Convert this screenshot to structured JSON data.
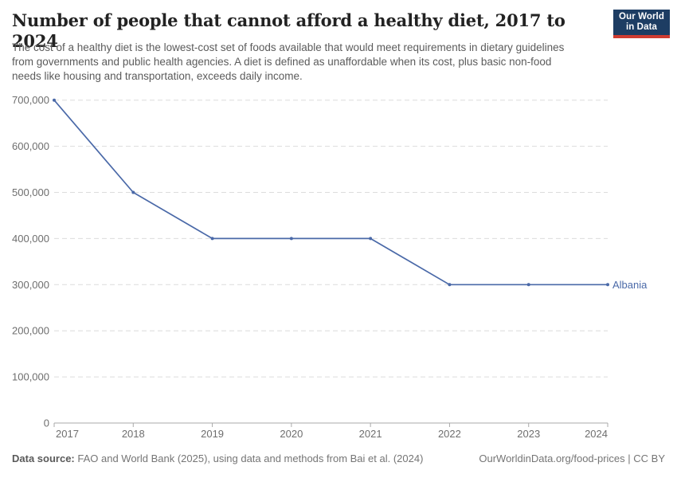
{
  "header": {
    "title": "Number of people that cannot afford a healthy diet, 2017 to 2024",
    "subtitle": "The cost of a healthy diet is the lowest-cost set of foods available that would meet requirements in dietary guidelines from governments and public health agencies. A diet is defined as unaffordable when its cost, plus basic non-food needs like housing and transportation, exceeds daily income.",
    "logo": {
      "line1": "Our World",
      "line2": "in Data"
    }
  },
  "chart_data": {
    "type": "line",
    "title": "Number of people that cannot afford a healthy diet, 2017 to 2024",
    "x": [
      2017,
      2018,
      2019,
      2020,
      2021,
      2022,
      2023,
      2024
    ],
    "series": [
      {
        "name": "Albania",
        "values": [
          700000,
          500000,
          400000,
          400000,
          400000,
          300000,
          300000,
          300000
        ],
        "color": "#4a69a8"
      }
    ],
    "xlabel": "",
    "ylabel": "",
    "ylim": [
      0,
      700000
    ],
    "y_ticks": [
      0,
      100000,
      200000,
      300000,
      400000,
      500000,
      600000,
      700000
    ],
    "grid": "horizontal-dashed",
    "legend": "end-of-line entity label"
  },
  "footer": {
    "source_label": "Data source:",
    "source_text": " FAO and World Bank (2025), using data and methods from Bai et al. (2024)",
    "rights": "OurWorldinData.org/food-prices | CC BY"
  },
  "colors": {
    "line": "#4a69a8",
    "grid": "#dcdcdc",
    "axis": "#a9a9a9",
    "tick_text": "#6e6e6e",
    "logo_bg": "#1d3d63",
    "logo_stripe": "#cf3c31"
  }
}
